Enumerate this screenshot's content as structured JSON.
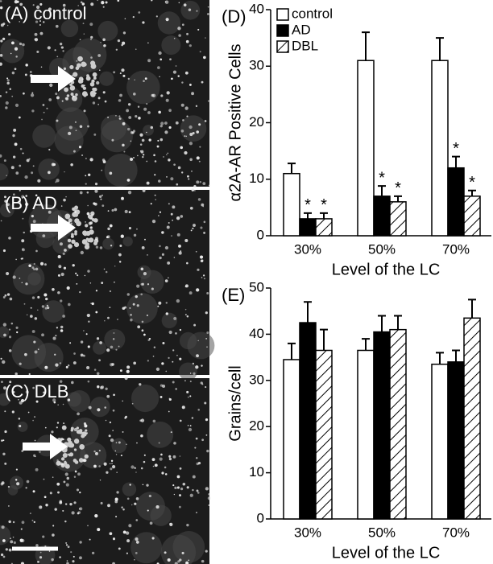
{
  "panels": [
    "(A) control",
    "(B) AD",
    "(C) DLB"
  ],
  "chart_data": [
    {
      "type": "bar",
      "panel": "(D)",
      "ylabel": "α2A-AR Positive Cells",
      "xlabel": "Level of the LC",
      "categories": [
        "30%",
        "50%",
        "70%"
      ],
      "series": [
        {
          "name": "control",
          "color": "#ffffff",
          "values": [
            11,
            31,
            31
          ],
          "errors": [
            1.8,
            5,
            4
          ]
        },
        {
          "name": "AD",
          "color": "#000000",
          "values": [
            3,
            7,
            12
          ],
          "errors": [
            1,
            1.8,
            2
          ],
          "marker": "*"
        },
        {
          "name": "DBL",
          "color": "#ffffff",
          "hatch": true,
          "values": [
            3,
            6,
            7
          ],
          "errors": [
            1,
            1,
            1
          ],
          "marker": "*"
        }
      ],
      "ylim": [
        0,
        40
      ],
      "yticks": [
        0,
        10,
        20,
        30,
        40
      ],
      "legend": "top-left"
    },
    {
      "type": "bar",
      "panel": "(E)",
      "ylabel": "Grains/cell",
      "xlabel": "Level of the LC",
      "categories": [
        "30%",
        "50%",
        "70%"
      ],
      "series": [
        {
          "color": "#ffffff",
          "values": [
            34.5,
            36.5,
            33.5
          ],
          "errors": [
            3.5,
            2.5,
            2.5
          ]
        },
        {
          "color": "#000000",
          "values": [
            42.5,
            40.5,
            34
          ],
          "errors": [
            4.5,
            3.5,
            2.5
          ]
        },
        {
          "color": "#ffffff",
          "hatch": true,
          "values": [
            36.5,
            41,
            43.5
          ],
          "errors": [
            4.5,
            3,
            4
          ]
        }
      ],
      "ylim": [
        0,
        50
      ],
      "yticks": [
        0,
        10,
        20,
        30,
        40,
        50
      ]
    }
  ]
}
